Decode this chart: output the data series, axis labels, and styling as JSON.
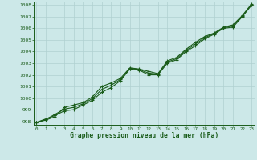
{
  "title": "Graphe pression niveau de la mer (hPa)",
  "bg_color": "#cce8e8",
  "grid_color": "#b0d0d0",
  "line_color": "#1a5c1a",
  "x_ticks": [
    0,
    1,
    2,
    3,
    4,
    5,
    6,
    7,
    8,
    9,
    10,
    11,
    12,
    13,
    14,
    15,
    16,
    17,
    18,
    19,
    20,
    21,
    22,
    23
  ],
  "y_ticks": [
    998,
    999,
    1000,
    1001,
    1002,
    1003,
    1004,
    1005,
    1006,
    1007,
    1008
  ],
  "ylim": [
    997.7,
    1008.3
  ],
  "xlim": [
    -0.3,
    23.3
  ],
  "lines": [
    [
      997.9,
      998.2,
      998.5,
      998.9,
      999.0,
      999.4,
      999.8,
      1000.5,
      1000.9,
      1001.5,
      1002.5,
      1002.4,
      1002.0,
      1002.0,
      1003.0,
      1003.3,
      1004.0,
      1004.5,
      1005.1,
      1005.5,
      1006.0,
      1006.1,
      1007.0,
      1008.0
    ],
    [
      997.9,
      998.1,
      998.4,
      999.2,
      999.4,
      999.6,
      1000.1,
      1001.0,
      1001.3,
      1001.7,
      1002.6,
      1002.5,
      1002.3,
      1002.1,
      1003.2,
      1003.5,
      1004.2,
      1004.8,
      1005.3,
      1005.6,
      1006.1,
      1006.3,
      1007.1,
      1008.1
    ],
    [
      997.9,
      998.15,
      998.6,
      999.05,
      999.2,
      999.5,
      999.95,
      1000.75,
      1001.1,
      1001.6,
      1002.55,
      1002.45,
      1002.15,
      1002.05,
      1003.1,
      1003.4,
      1004.1,
      1004.65,
      1005.2,
      1005.55,
      1006.05,
      1006.2,
      1007.05,
      1008.05
    ]
  ]
}
